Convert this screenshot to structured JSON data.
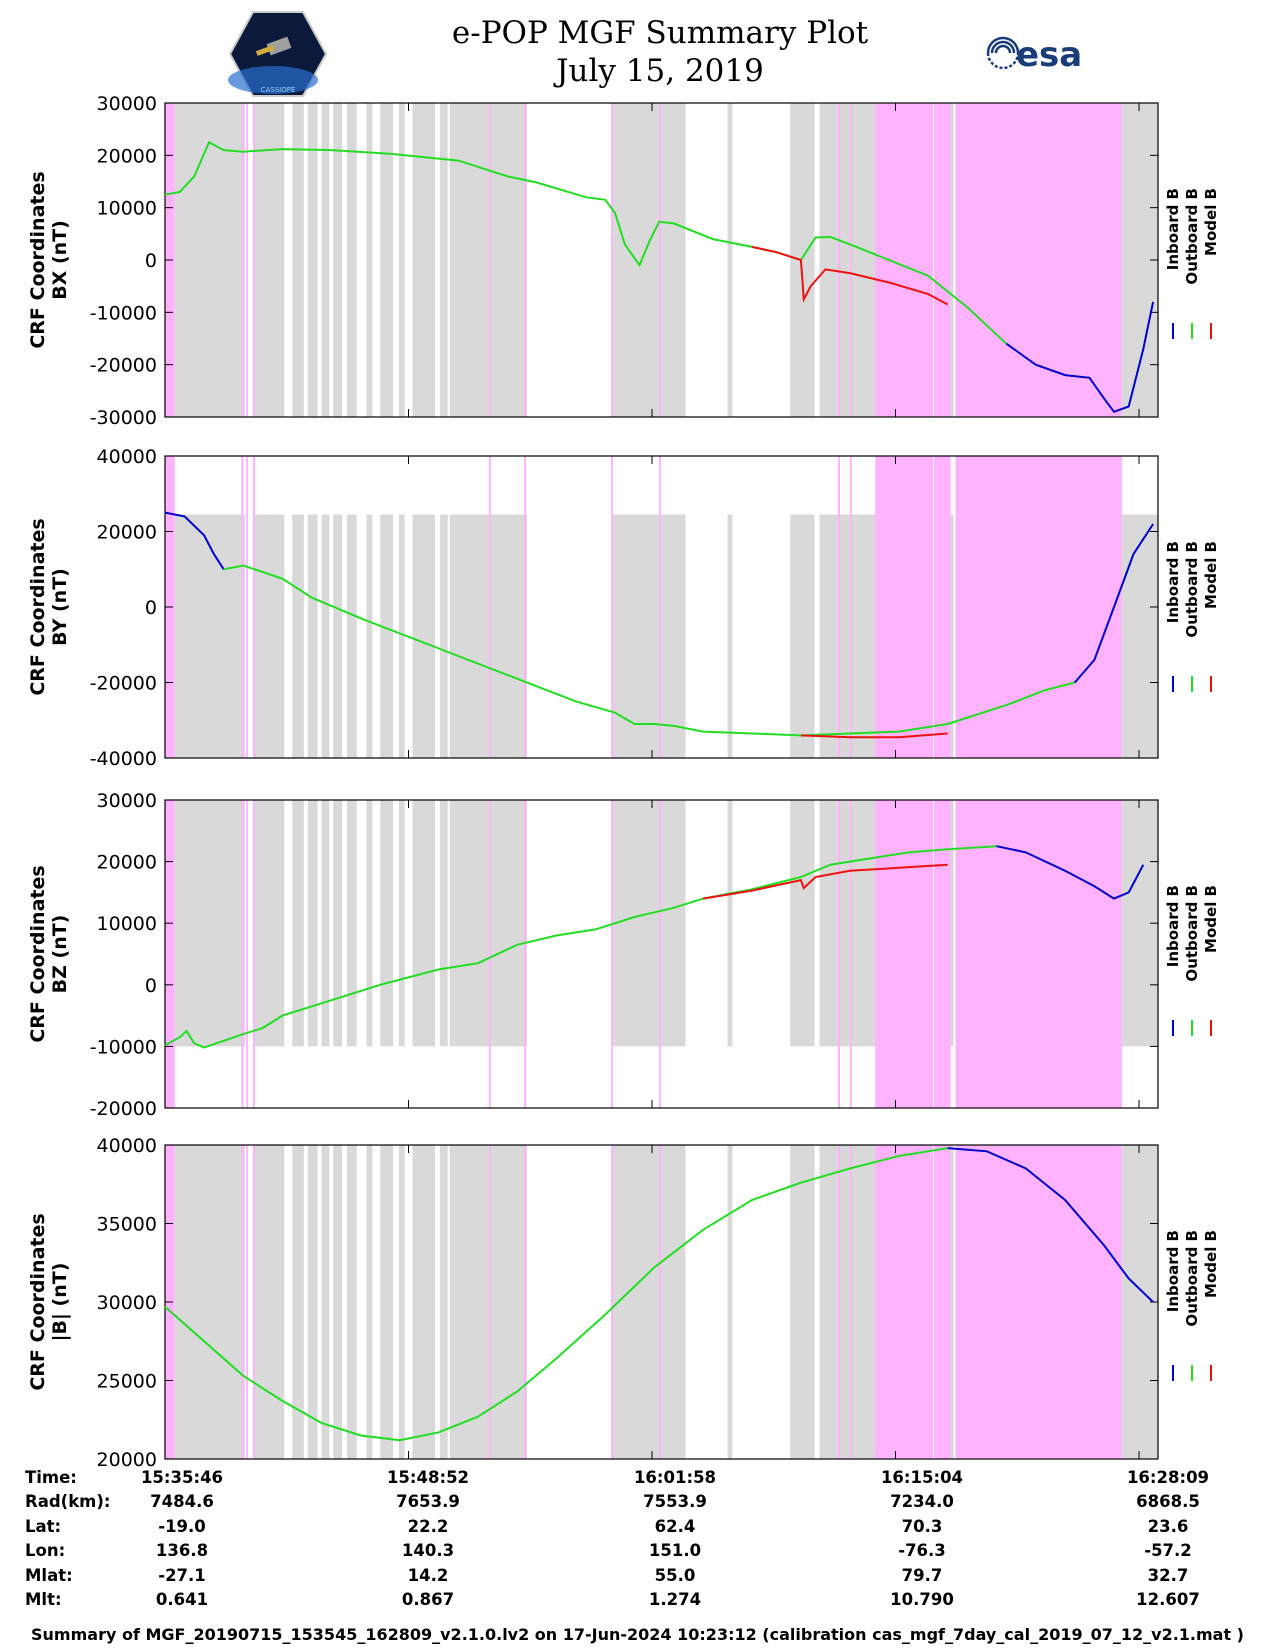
{
  "header": {
    "title": "e-POP MGF Summary Plot",
    "date": "July 15, 2019",
    "logo_right_text": "esa",
    "logo_left_text": "CASSIOPE"
  },
  "colors": {
    "inboard": "#0000cc",
    "outboard": "#22dd22",
    "model": "#ee1111",
    "gray_band": "#d9d9d9",
    "pink_band": "#ffb3ff"
  },
  "legend": {
    "inboard": "Inboard B",
    "outboard": "Outboard B",
    "model": "Model B"
  },
  "chart_data": [
    {
      "type": "line",
      "title": "BX",
      "ylabel_line1": "CRF Coordinates",
      "ylabel_line2": "BX (nT)",
      "ylim": [
        -30000,
        30000
      ],
      "yticks": [
        "30000",
        "20000",
        "10000",
        "0",
        "-10000",
        "-20000",
        "-30000"
      ],
      "ytick_values": [
        30000,
        20000,
        10000,
        0,
        -10000,
        -20000,
        -30000
      ],
      "t_range_min": [
        0,
        53.3
      ],
      "series": [
        {
          "name": "Outboard B",
          "points": [
            [
              0,
              12500
            ],
            [
              1.5,
              13000
            ],
            [
              3,
              16000
            ],
            [
              4.5,
              22500
            ],
            [
              6,
              21000
            ],
            [
              8,
              20700
            ],
            [
              12,
              21200
            ],
            [
              17,
              21000
            ],
            [
              23,
              20300
            ],
            [
              30,
              19000
            ],
            [
              35,
              16000
            ],
            [
              38,
              14800
            ],
            [
              43,
              12000
            ],
            [
              45,
              11500
            ],
            [
              46,
              9000
            ],
            [
              47,
              3000
            ],
            [
              48.5,
              -1000
            ],
            [
              49.5,
              3500
            ],
            [
              50.5,
              7300
            ],
            [
              52,
              7000
            ],
            [
              56,
              4000
            ],
            [
              60,
              2500
            ],
            [
              62.5,
              1500
            ],
            [
              65,
              0
            ],
            [
              66.5,
              4300
            ],
            [
              68,
              4400
            ],
            [
              70,
              3000
            ],
            [
              74,
              0
            ],
            [
              78,
              -3000
            ],
            [
              82,
              -9000
            ],
            [
              86,
              -16000
            ]
          ]
        },
        {
          "name": "Inboard B",
          "points": [
            [
              86,
              -16000
            ],
            [
              89,
              -20000
            ],
            [
              92,
              -22000
            ],
            [
              94.5,
              -22500
            ],
            [
              96,
              -26500
            ],
            [
              97,
              -29000
            ],
            [
              98.5,
              -28000
            ],
            [
              100,
              -17000
            ],
            [
              101,
              -8000
            ]
          ]
        },
        {
          "name": "Model B",
          "points": [
            [
              60,
              2500
            ],
            [
              62.5,
              1500
            ],
            [
              65,
              0
            ],
            [
              65.3,
              -7500
            ],
            [
              66,
              -5000
            ],
            [
              67.5,
              -1800
            ],
            [
              70,
              -2500
            ],
            [
              74,
              -4300
            ],
            [
              78,
              -6500
            ],
            [
              80,
              -8500
            ]
          ]
        }
      ]
    },
    {
      "type": "line",
      "title": "BY",
      "ylabel_line1": "CRF Coordinates",
      "ylabel_line2": "BY (nT)",
      "ylim": [
        -40000,
        40000
      ],
      "yticks": [
        "40000",
        "20000",
        "0",
        "-20000",
        "-40000"
      ],
      "ytick_values": [
        40000,
        20000,
        0,
        -20000,
        -40000
      ],
      "series": [
        {
          "name": "Inboard B",
          "points": [
            [
              0,
              25000
            ],
            [
              2,
              24000
            ],
            [
              4,
              19000
            ],
            [
              5,
              14000
            ],
            [
              6,
              10000
            ]
          ]
        },
        {
          "name": "Outboard B",
          "points": [
            [
              6,
              10000
            ],
            [
              8,
              11000
            ],
            [
              12,
              7500
            ],
            [
              15,
              2500
            ],
            [
              20,
              -3000
            ],
            [
              28,
              -11000
            ],
            [
              35,
              -18000
            ],
            [
              42,
              -25000
            ],
            [
              46,
              -28000
            ],
            [
              48,
              -31000
            ],
            [
              50,
              -31000
            ],
            [
              52,
              -31500
            ],
            [
              55,
              -33000
            ],
            [
              60,
              -33500
            ],
            [
              65,
              -34000
            ],
            [
              70,
              -33500
            ],
            [
              75,
              -33000
            ],
            [
              80,
              -31000
            ],
            [
              86,
              -26000
            ],
            [
              90,
              -22000
            ],
            [
              93,
              -20000
            ]
          ]
        },
        {
          "name": "Inboard B ",
          "points": [
            [
              93,
              -20000
            ],
            [
              95,
              -14000
            ],
            [
              97,
              0
            ],
            [
              99,
              14000
            ],
            [
              101,
              22000
            ]
          ]
        },
        {
          "name": "Model B",
          "points": [
            [
              65,
              -34000
            ],
            [
              70,
              -34500
            ],
            [
              75,
              -34500
            ],
            [
              80,
              -33500
            ]
          ]
        }
      ]
    },
    {
      "type": "line",
      "title": "BZ",
      "ylabel_line1": "CRF Coordinates",
      "ylabel_line2": "BZ (nT)",
      "ylim": [
        -20000,
        30000
      ],
      "yticks": [
        "30000",
        "20000",
        "10000",
        "0",
        "-10000",
        "-20000"
      ],
      "ytick_values": [
        30000,
        20000,
        10000,
        0,
        -10000,
        -20000
      ],
      "series": [
        {
          "name": "Outboard B",
          "points": [
            [
              0,
              -9800
            ],
            [
              1.5,
              -8500
            ],
            [
              2.2,
              -7500
            ],
            [
              3,
              -9500
            ],
            [
              4,
              -10200
            ],
            [
              8,
              -8000
            ],
            [
              10,
              -7000
            ],
            [
              12,
              -5000
            ],
            [
              16,
              -3000
            ],
            [
              22,
              0
            ],
            [
              28,
              2500
            ],
            [
              32,
              3500
            ],
            [
              36,
              6500
            ],
            [
              40,
              8000
            ],
            [
              44,
              9000
            ],
            [
              48,
              11000
            ],
            [
              52,
              12500
            ],
            [
              55,
              14000
            ],
            [
              60,
              15500
            ],
            [
              65,
              17500
            ],
            [
              68,
              19500
            ],
            [
              72,
              20500
            ],
            [
              76,
              21500
            ],
            [
              80,
              22000
            ],
            [
              85,
              22500
            ]
          ]
        },
        {
          "name": "Inboard B",
          "points": [
            [
              85,
              22500
            ],
            [
              88,
              21500
            ],
            [
              92,
              18500
            ],
            [
              95,
              16000
            ],
            [
              97,
              14000
            ],
            [
              98.5,
              15000
            ],
            [
              100,
              19500
            ]
          ]
        },
        {
          "name": "Model B",
          "points": [
            [
              55,
              14000
            ],
            [
              60,
              15300
            ],
            [
              65,
              17000
            ],
            [
              65.3,
              15700
            ],
            [
              66.5,
              17500
            ],
            [
              70,
              18500
            ],
            [
              75,
              19000
            ],
            [
              80,
              19500
            ]
          ]
        }
      ]
    },
    {
      "type": "line",
      "title": "|B|",
      "ylabel_line1": "CRF Coordinates",
      "ylabel_line2": "|B| (nT)",
      "ylim": [
        20000,
        40000
      ],
      "yticks": [
        "40000",
        "35000",
        "30000",
        "25000",
        "20000"
      ],
      "ytick_values": [
        40000,
        35000,
        30000,
        25000,
        20000
      ],
      "series": [
        {
          "name": "Outboard B",
          "points": [
            [
              0,
              29700
            ],
            [
              4,
              27500
            ],
            [
              8,
              25300
            ],
            [
              12,
              23700
            ],
            [
              16,
              22300
            ],
            [
              20,
              21500
            ],
            [
              24,
              21200
            ],
            [
              28,
              21700
            ],
            [
              32,
              22700
            ],
            [
              36,
              24300
            ],
            [
              40,
              26400
            ],
            [
              45,
              29200
            ],
            [
              50,
              32200
            ],
            [
              55,
              34600
            ],
            [
              60,
              36500
            ],
            [
              65,
              37600
            ],
            [
              70,
              38500
            ],
            [
              75,
              39300
            ],
            [
              80,
              39800
            ]
          ]
        },
        {
          "name": "Inboard B",
          "points": [
            [
              80,
              39800
            ],
            [
              84,
              39600
            ],
            [
              88,
              38500
            ],
            [
              92,
              36500
            ],
            [
              96,
              33600
            ],
            [
              98.5,
              31500
            ],
            [
              101,
              30000
            ]
          ]
        }
      ]
    }
  ],
  "x_axis": {
    "tick_positions_min": [
      0,
      13.1,
      26.2,
      39.3,
      52.4
    ],
    "columns": [
      {
        "time": "15:35:46",
        "rad": "7484.6",
        "lat": "-19.0",
        "lon": "136.8",
        "mlat": "-27.1",
        "mlt": "0.641"
      },
      {
        "time": "15:48:52",
        "rad": "7653.9",
        "lat": "22.2",
        "lon": "140.3",
        "mlat": "14.2",
        "mlt": "0.867"
      },
      {
        "time": "16:01:58",
        "rad": "7553.9",
        "lat": "62.4",
        "lon": "151.0",
        "mlat": "55.0",
        "mlt": "1.274"
      },
      {
        "time": "16:15:04",
        "rad": "7234.0",
        "lat": "70.3",
        "lon": "-76.3",
        "mlat": "79.7",
        "mlt": "10.790"
      },
      {
        "time": "16:28:09",
        "rad": "6868.5",
        "lat": "23.6",
        "lon": "-57.2",
        "mlat": "32.7",
        "mlt": "12.607"
      }
    ]
  },
  "ephemeris_labels": {
    "time": "Time:",
    "rad": "Rad(km):",
    "lat": "Lat:",
    "lon": "Lon:",
    "mlat": "Mlat:",
    "mlt": "Mlt:"
  },
  "footer": "Summary of MGF_20190715_153545_162809_v2.1.0.lv2 on 17-Jun-2024 10:23:12 (calibration cas_mgf_7day_cal_2019_07_12_v2.1.mat )"
}
